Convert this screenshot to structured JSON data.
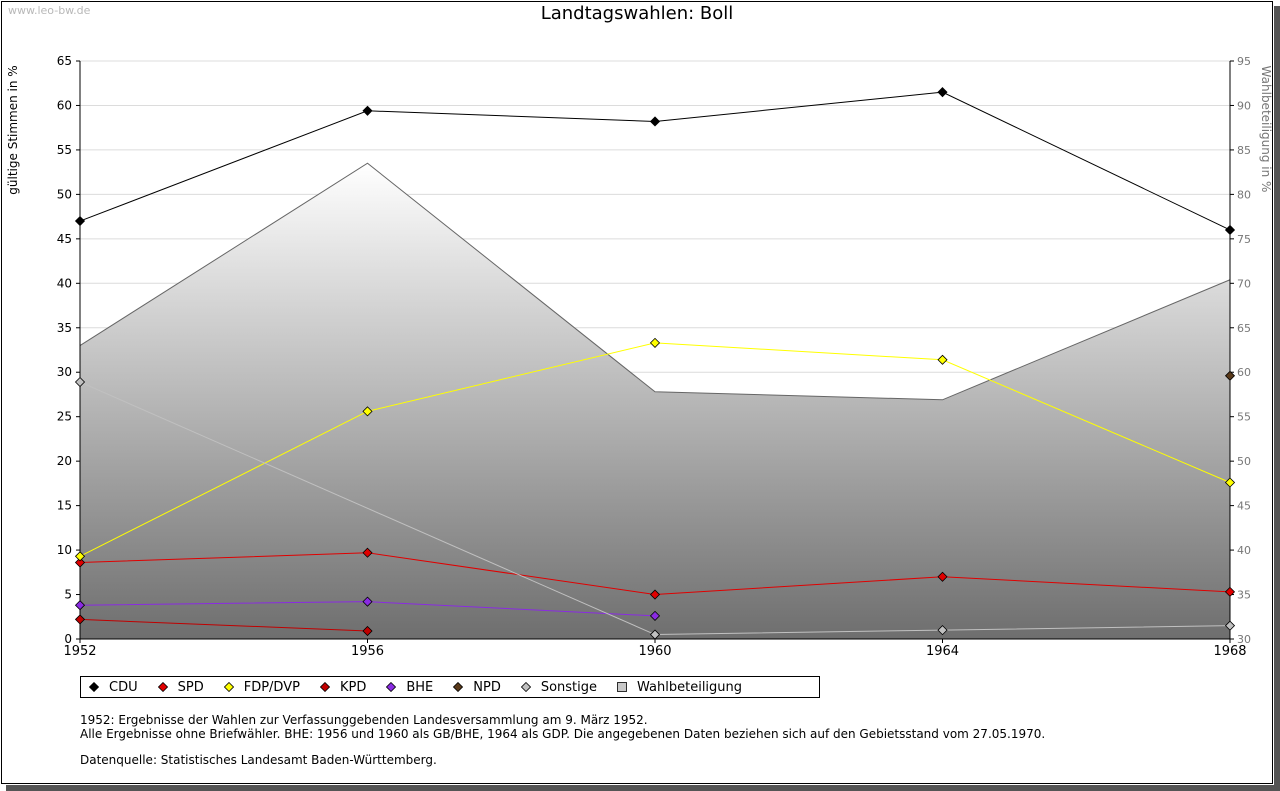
{
  "watermark": "www.leo-bw.de",
  "chart_data": {
    "type": "line",
    "title": "Landtagswahlen: Boll",
    "ylabel": "gültige Stimmen in %",
    "y2label": "Wahlbeteiligung in %",
    "x": [
      1952,
      1956,
      1960,
      1964,
      1968
    ],
    "ylim": [
      0,
      65
    ],
    "y2lim": [
      30,
      95
    ],
    "yticks": [
      0,
      5,
      10,
      15,
      20,
      25,
      30,
      35,
      40,
      45,
      50,
      55,
      60,
      65
    ],
    "y2ticks": [
      30,
      35,
      40,
      45,
      50,
      55,
      60,
      65,
      70,
      75,
      80,
      85,
      90,
      95
    ],
    "grid": true,
    "legend_position": "bottom",
    "area": {
      "name": "Wahlbeteiligung",
      "x": [
        1952,
        1956,
        1960,
        1964,
        1968
      ],
      "values": [
        63.0,
        83.5,
        57.8,
        56.9,
        70.4
      ]
    },
    "series": [
      {
        "name": "CDU",
        "color": "#000000",
        "x": [
          1952,
          1956,
          1960,
          1964,
          1968
        ],
        "values": [
          47.0,
          59.4,
          58.2,
          61.5,
          46.0
        ]
      },
      {
        "name": "SPD",
        "color": "#e00000",
        "x": [
          1952,
          1956,
          1960,
          1964,
          1968
        ],
        "values": [
          8.6,
          9.7,
          5.0,
          7.0,
          5.3
        ]
      },
      {
        "name": "FDP/DVP",
        "color": "#ffff00",
        "x": [
          1952,
          1956,
          1960,
          1964,
          1968
        ],
        "values": [
          9.3,
          25.6,
          33.3,
          31.4,
          17.6
        ]
      },
      {
        "name": "KPD",
        "color": "#c00000",
        "x": [
          1952,
          1956
        ],
        "values": [
          2.2,
          0.9
        ]
      },
      {
        "name": "BHE",
        "color": "#8a2be2",
        "x": [
          1952,
          1956,
          1960
        ],
        "values": [
          3.8,
          4.2,
          2.6
        ]
      },
      {
        "name": "NPD",
        "color": "#5a3a1a",
        "x": [
          1968
        ],
        "values": [
          29.6
        ]
      },
      {
        "name": "Sonstige",
        "color": "#c0c0c0",
        "x": [
          1952,
          1960,
          1964,
          1968
        ],
        "values": [
          28.9,
          0.5,
          1.0,
          1.5
        ]
      }
    ],
    "legend": [
      "CDU",
      "SPD",
      "FDP/DVP",
      "KPD",
      "BHE",
      "NPD",
      "Sonstige",
      "Wahlbeteiligung"
    ]
  },
  "legend_colors": {
    "CDU": "#000000",
    "SPD": "#e00000",
    "FDP/DVP": "#ffff00",
    "KPD": "#c00000",
    "BHE": "#8a2be2",
    "NPD": "#5a3a1a",
    "Sonstige": "#c0c0c0",
    "Wahlbeteiligung": "#c8c8c8"
  },
  "notes": {
    "line1": "1952: Ergebnisse der Wahlen zur Verfassunggebenden Landesversammlung am 9. März 1952.",
    "line2": "Alle Ergebnisse ohne Briefwähler. BHE: 1956 und 1960 als GB/BHE, 1964 als GDP. Die angegebenen Daten beziehen sich auf den Gebietsstand vom 27.05.1970.",
    "line3": "Datenquelle: Statistisches Landesamt Baden-Württemberg."
  }
}
